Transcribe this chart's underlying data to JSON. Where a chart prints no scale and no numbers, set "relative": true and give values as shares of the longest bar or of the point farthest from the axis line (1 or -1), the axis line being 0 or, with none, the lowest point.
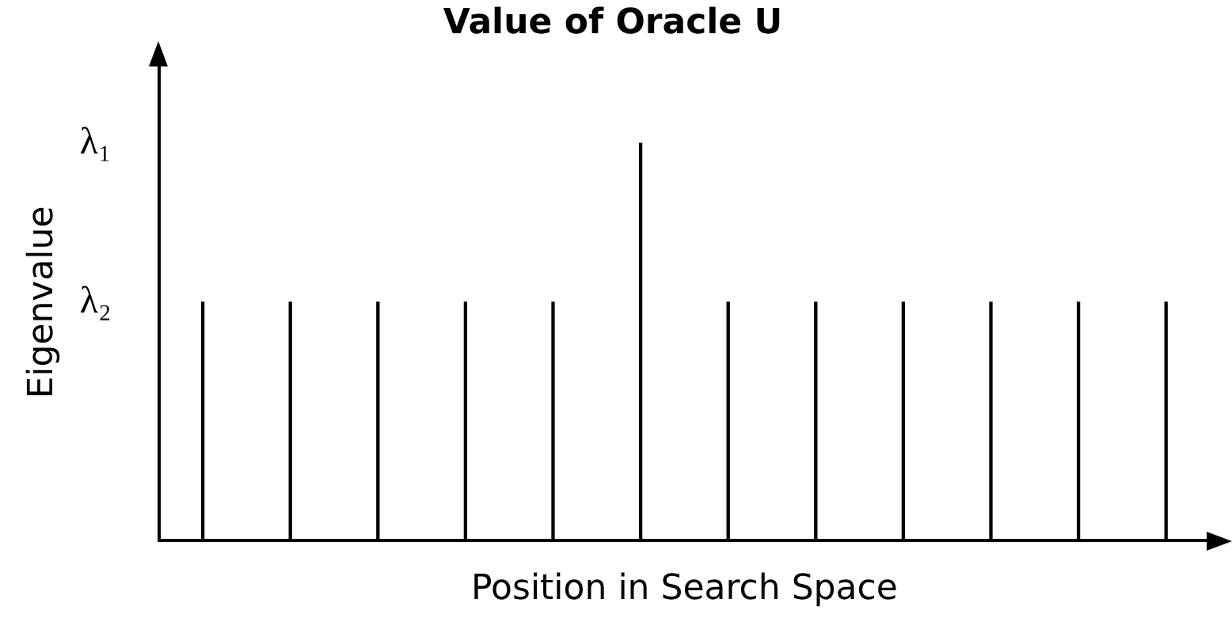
{
  "chart_data": {
    "type": "bar",
    "title": "Value of Oracle U",
    "xlabel": "Position in Search Space",
    "ylabel": "Eigenvalue",
    "relative": true,
    "categories": [
      null,
      null,
      null,
      null,
      null,
      null,
      null,
      null,
      null,
      null,
      null,
      null
    ],
    "values": [
      0.6,
      0.6,
      0.6,
      0.6,
      0.6,
      1,
      0.6,
      0.6,
      0.6,
      0.6,
      0.6,
      0.6
    ],
    "color": "#000000",
    "annotations": [
      "λ₁",
      "λ₂"
    ],
    "grid": false,
    "legend": false
  }
}
